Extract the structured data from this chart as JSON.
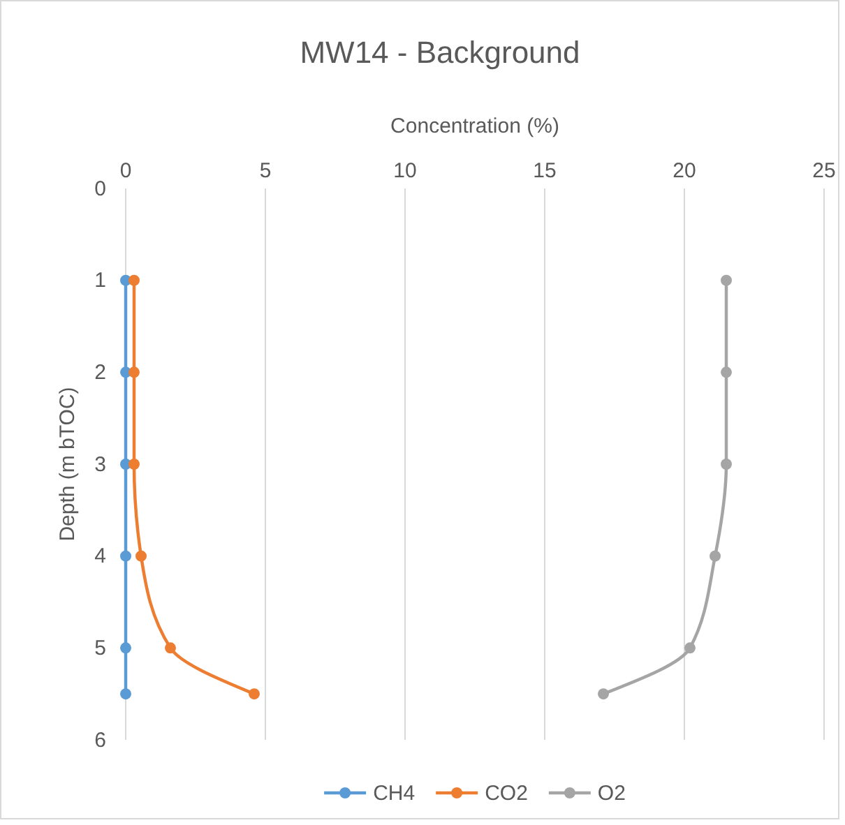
{
  "chart_data": {
    "type": "line",
    "title": "MW14 - Background",
    "xlabel": "Concentration (%)",
    "ylabel": "Depth (m bTOC)",
    "xlim": [
      0,
      25
    ],
    "xticks": [
      0,
      5,
      10,
      15,
      20,
      25
    ],
    "ylim": [
      6,
      0
    ],
    "yticks": [
      0,
      1,
      2,
      3,
      4,
      5,
      6
    ],
    "grid": "x",
    "legend": "bottom",
    "marker": "circle",
    "line_style": "solid",
    "series": [
      {
        "name": "CH4",
        "color": "#5b9bd5",
        "x": [
          0,
          0,
          0,
          0,
          0,
          0
        ],
        "values": [
          1,
          2,
          3,
          4,
          5,
          5.5
        ]
      },
      {
        "name": "CO2",
        "color": "#ed7d31",
        "x": [
          0.3,
          0.3,
          0.3,
          0.55,
          1.6,
          4.6
        ],
        "values": [
          1,
          2,
          3,
          4,
          5,
          5.5
        ]
      },
      {
        "name": "O2",
        "color": "#a5a5a5",
        "x": [
          21.5,
          21.5,
          21.5,
          21.1,
          20.2,
          17.1
        ],
        "values": [
          1,
          2,
          3,
          4,
          5,
          5.5
        ]
      }
    ]
  }
}
